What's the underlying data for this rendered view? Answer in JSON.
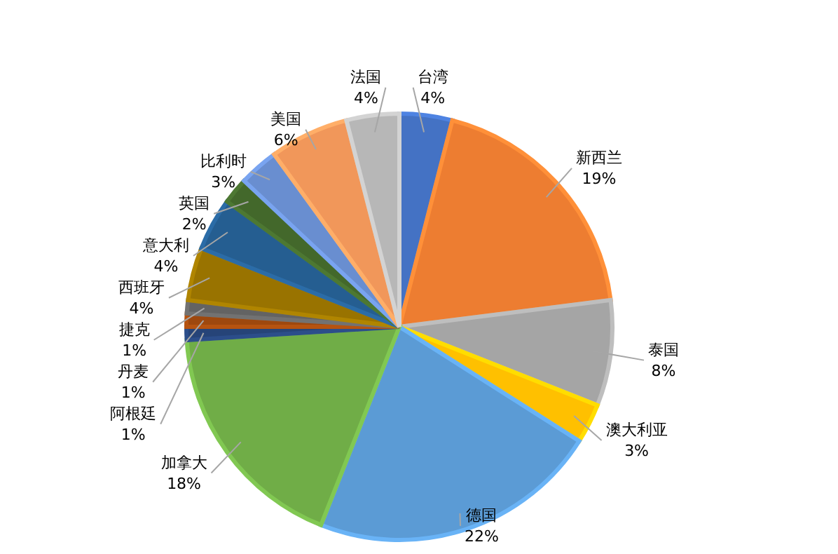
{
  "chart_data": {
    "type": "pie",
    "categories": [
      "台湾",
      "新西兰",
      "泰国",
      "澳大利亚",
      "德国",
      "加拿大",
      "阿根廷",
      "丹麦",
      "捷克",
      "西班牙",
      "意大利",
      "英国",
      "比利时",
      "美国",
      "法国"
    ],
    "values": [
      4,
      19,
      8,
      3,
      22,
      18,
      1,
      1,
      1,
      4,
      4,
      2,
      3,
      6,
      4
    ],
    "value_labels": [
      "4%",
      "19%",
      "8%",
      "3%",
      "22%",
      "18%",
      "1%",
      "1%",
      "1%",
      "4%",
      "4%",
      "2%",
      "3%",
      "6%",
      "4%"
    ],
    "colors": [
      "#4472c4",
      "#ed7d31",
      "#a5a5a5",
      "#ffc000",
      "#5b9bd5",
      "#70ad47",
      "#264478",
      "#9e480e",
      "#636363",
      "#997300",
      "#255e91",
      "#43682b",
      "#698ed0",
      "#f1975a",
      "#b7b7b7"
    ]
  }
}
